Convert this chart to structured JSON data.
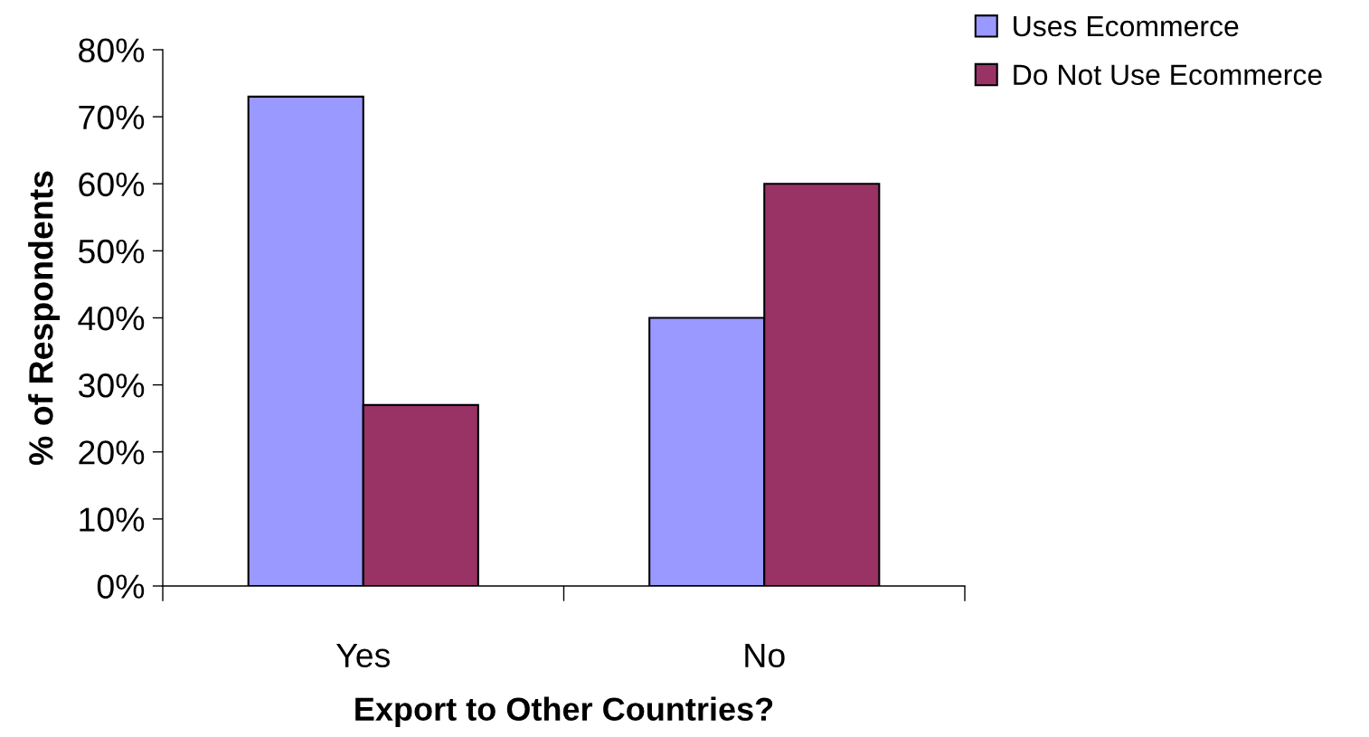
{
  "chart_data": {
    "type": "bar",
    "xlabel": "Export to Other Countries?",
    "ylabel": "% of Respondents",
    "categories": [
      "Yes",
      "No"
    ],
    "series": [
      {
        "name": "Uses Ecommerce",
        "color": "#9999ff",
        "values": [
          73,
          40
        ]
      },
      {
        "name": "Do Not Use Ecommerce",
        "color": "#993366",
        "values": [
          27,
          60
        ]
      }
    ],
    "ylim": [
      0,
      80
    ],
    "yticks": [
      {
        "value": 0,
        "label": "0%"
      },
      {
        "value": 10,
        "label": "10%"
      },
      {
        "value": 20,
        "label": "20%"
      },
      {
        "value": 30,
        "label": "30%"
      },
      {
        "value": 40,
        "label": "40%"
      },
      {
        "value": 50,
        "label": "50%"
      },
      {
        "value": 60,
        "label": "60%"
      },
      {
        "value": 70,
        "label": "70%"
      },
      {
        "value": 80,
        "label": "80%"
      }
    ],
    "grid": false,
    "legend": "top right"
  }
}
